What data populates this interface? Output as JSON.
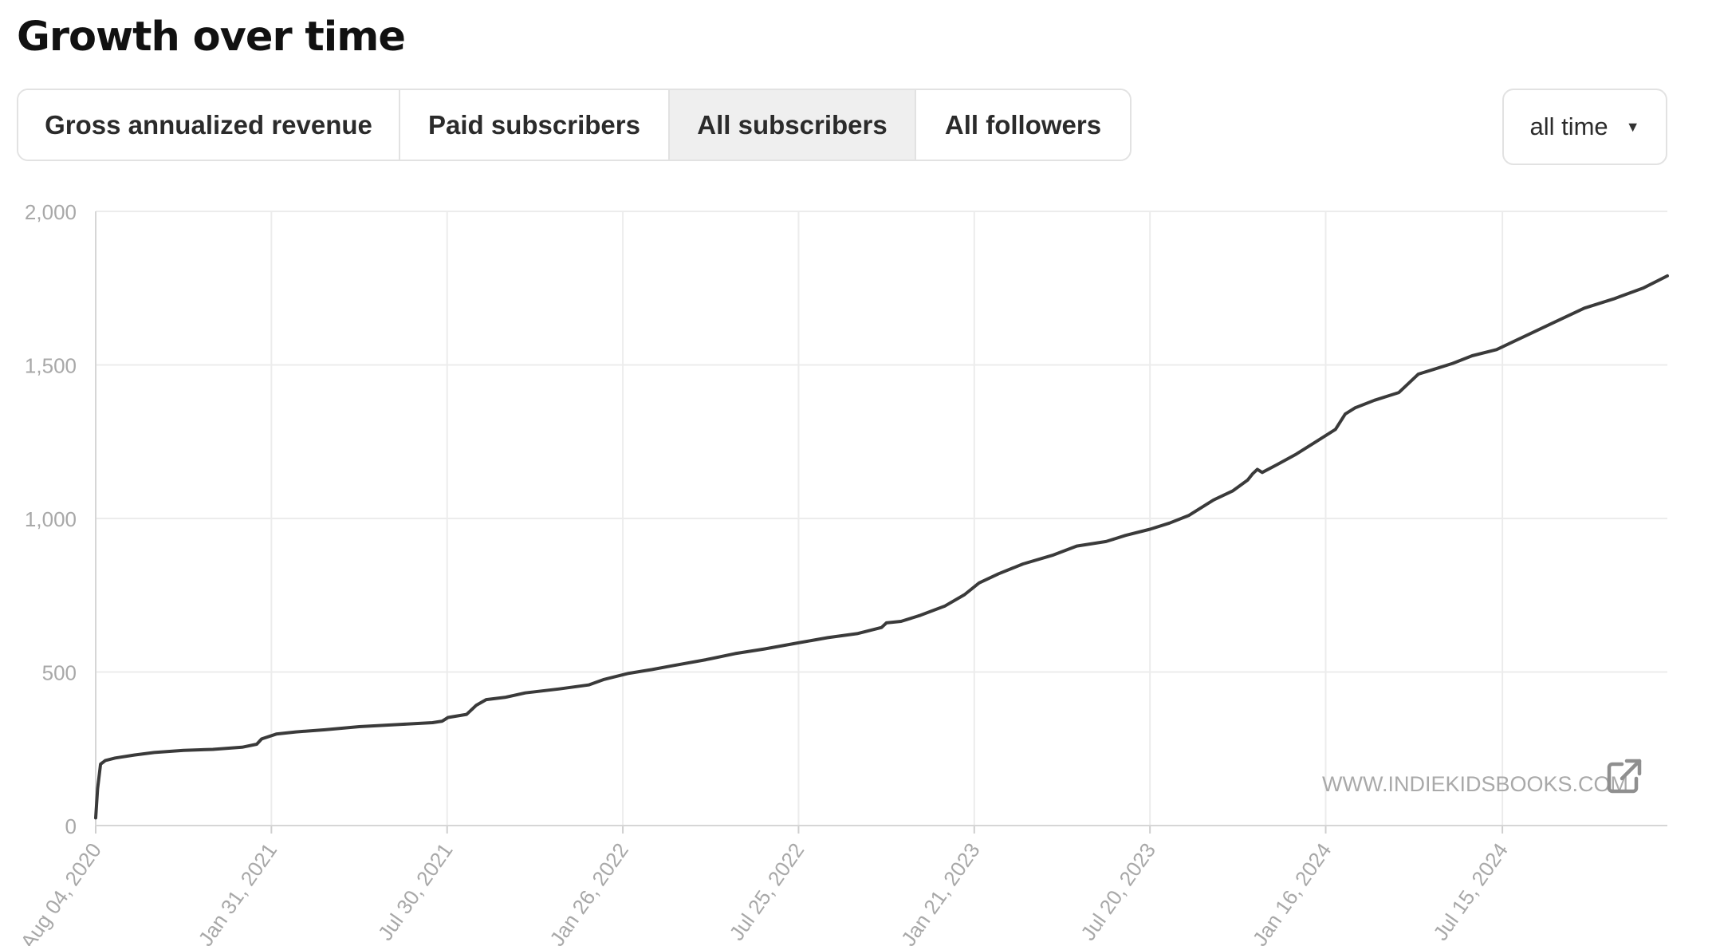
{
  "page": {
    "title": "Growth over time"
  },
  "tabs": [
    {
      "label": "Gross annualized revenue",
      "active": false
    },
    {
      "label": "Paid subscribers",
      "active": false
    },
    {
      "label": "All subscribers",
      "active": true
    },
    {
      "label": "All followers",
      "active": false
    }
  ],
  "range_select": {
    "value": "all time",
    "icon": "caret-down-icon"
  },
  "watermark": {
    "text": "WWW.INDIEKIDSBOOKS.COM",
    "icon": "external-link-icon"
  },
  "colors": {
    "line": "#3a3a3a",
    "grid": "#ececec",
    "axis_text": "#a8a8a8",
    "active_tab": "#efefef"
  },
  "chart_data": {
    "type": "line",
    "title": "",
    "xlabel": "",
    "ylabel": "",
    "ylim": [
      0,
      2000
    ],
    "xlim": [
      "2020-08-04",
      "2024-12-31"
    ],
    "yticks": [
      0,
      500,
      1000,
      1500,
      2000
    ],
    "ytick_labels": [
      "0",
      "500",
      "1,000",
      "1,500",
      "2,000"
    ],
    "xticks": [
      "2020-08-04",
      "2021-01-31",
      "2021-07-30",
      "2022-01-26",
      "2022-07-25",
      "2023-01-21",
      "2023-07-20",
      "2024-01-16",
      "2024-07-15"
    ],
    "xtick_labels": [
      "Aug 04, 2020",
      "Jan 31, 2021",
      "Jul 30, 2021",
      "Jan 26, 2022",
      "Jul 25, 2022",
      "Jan 21, 2023",
      "Jul 20, 2023",
      "Jan 16, 2024",
      "Jul 15, 2024"
    ],
    "grid": true,
    "series": [
      {
        "x": [
          "2020-08-04",
          "2020-08-06",
          "2020-08-09",
          "2020-08-14",
          "2020-08-24",
          "2020-09-13",
          "2020-10-03",
          "2020-11-02",
          "2020-12-02",
          "2021-01-01",
          "2021-01-16",
          "2021-01-21",
          "2021-02-05",
          "2021-02-25",
          "2021-03-27",
          "2021-05-01",
          "2021-06-15",
          "2021-07-15",
          "2021-07-25",
          "2021-07-31",
          "2021-08-19",
          "2021-08-29",
          "2021-09-08",
          "2021-09-28",
          "2021-10-18",
          "2021-11-22",
          "2021-12-22",
          "2022-01-06",
          "2022-01-31",
          "2022-02-25",
          "2022-03-17",
          "2022-04-21",
          "2022-05-21",
          "2022-06-20",
          "2022-07-25",
          "2022-08-24",
          "2022-09-23",
          "2022-10-18",
          "2022-10-23",
          "2022-11-07",
          "2022-11-27",
          "2022-12-22",
          "2023-01-11",
          "2023-01-26",
          "2023-02-15",
          "2023-03-12",
          "2023-04-11",
          "2023-05-06",
          "2023-06-05",
          "2023-06-25",
          "2023-07-20",
          "2023-08-09",
          "2023-08-29",
          "2023-09-23",
          "2023-10-13",
          "2023-10-28",
          "2023-11-02",
          "2023-11-07",
          "2023-11-12",
          "2023-11-27",
          "2023-12-17",
          "2024-01-06",
          "2024-01-26",
          "2024-02-05",
          "2024-02-15",
          "2024-03-06",
          "2024-03-31",
          "2024-04-20",
          "2024-05-05",
          "2024-05-25",
          "2024-06-14",
          "2024-07-09",
          "2024-08-08",
          "2024-09-07",
          "2024-10-07",
          "2024-11-06",
          "2024-12-06",
          "2024-12-31"
        ],
        "values": [
          25,
          120,
          200,
          212,
          220,
          230,
          238,
          245,
          248,
          255,
          265,
          282,
          298,
          305,
          312,
          322,
          330,
          335,
          340,
          352,
          362,
          392,
          410,
          418,
          432,
          445,
          458,
          475,
          495,
          508,
          520,
          540,
          560,
          575,
          595,
          612,
          625,
          645,
          660,
          665,
          685,
          715,
          752,
          790,
          820,
          852,
          880,
          910,
          925,
          945,
          965,
          985,
          1010,
          1060,
          1090,
          1125,
          1145,
          1160,
          1150,
          1175,
          1210,
          1250,
          1290,
          1340,
          1360,
          1385,
          1410,
          1470,
          1485,
          1505,
          1530,
          1550,
          1595,
          1640,
          1685,
          1715,
          1750,
          1790
        ]
      }
    ]
  }
}
